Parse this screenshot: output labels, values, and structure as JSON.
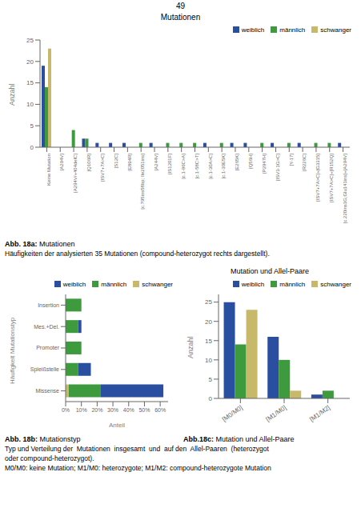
{
  "page_number": "49",
  "annotations": [
    "Typ und Verteilung der  Mutationen  insgesamt  und  auf den  Allel-Paaren  (heterozygot",
    "oder compound-heterozygot).",
    "M0/M0: keine Mutation; M1/M0: heterozygote; M1/M2: compound-heterozygote Mutation"
  ],
  "chart_data": [
    {
      "type": "bar",
      "title": "Mutationen",
      "ylabel": "Anzahl",
      "categories": [
        "Keine Mutation",
        "[A294V]",
        "[A294V/+404delC]",
        "[Q106R]",
        "[ISV7+7A>C]",
        "[S12C]",
        "[E894R]",
        "[c.795ins58bp; Ile2051ins]",
        "[A244V]",
        "[IS1201F]",
        "[c.1-96C>A]",
        "[c.1-58C>T]",
        "[c.1-30A>C]",
        "[c.1-30E5K]",
        "[E265K]",
        "[Q56H]",
        "[P2947H]",
        "[ISV3-1G>C]",
        "[Y-17]",
        "[R226C]",
        "[ISV7+7A>C]+[G3315]",
        "[ISV7+7A>C]+[R152Q]",
        "[c.220ins1G;Glu141ins]+[A294V]"
      ],
      "series": [
        {
          "name": "weiblich",
          "color": "#2b4fa0",
          "values": [
            19,
            0,
            0,
            2,
            1,
            1,
            1,
            0,
            1,
            0,
            0,
            0,
            1,
            0,
            1,
            1,
            0,
            1,
            0,
            1,
            0,
            0,
            1
          ]
        },
        {
          "name": "männlich",
          "color": "#3d9a3d",
          "values": [
            14,
            0,
            4,
            2,
            0,
            0,
            0,
            1,
            0,
            1,
            1,
            1,
            0,
            1,
            0,
            0,
            1,
            0,
            1,
            0,
            1,
            1,
            0
          ]
        },
        {
          "name": "schwanger",
          "color": "#c8b86a",
          "values": [
            23,
            0,
            0,
            0,
            0,
            0,
            0,
            0,
            0,
            0,
            0,
            0,
            0,
            0,
            0,
            0,
            0,
            0,
            0,
            0,
            0,
            0,
            0
          ]
        }
      ],
      "ylim": [
        0,
        25
      ],
      "yticks": [
        0,
        5,
        10,
        15,
        20,
        25
      ],
      "grid": false,
      "legend": "upper right",
      "annotations": [
        "Abb. 18a:",
        " Mutationen",
        "Häufigkeiten der analysierten 35 Mutationen (compound-heterozygot rechts dargestellt)."
      ]
    },
    {
      "type": "bar",
      "orientation": "horizontal",
      "stacked": true,
      "xlabel": "Anteil",
      "ylabel": "Häufigkeit Mutationstyp",
      "categories": [
        "Missense",
        "Spleißstelle",
        "Promoter",
        "Mes.+Del.",
        "Insertion"
      ],
      "series": [
        {
          "name": "weiblich",
          "color": "#2b4fa0",
          "values": [
            0.4,
            0.08,
            0.0,
            0.02,
            0.0
          ]
        },
        {
          "name": "männlich",
          "color": "#3d9a3d",
          "values": [
            0.2,
            0.08,
            0.1,
            0.08,
            0.1
          ]
        },
        {
          "name": "schwanger",
          "color": "#c8b86a",
          "values": [
            0.02,
            0.0,
            0.0,
            0.0,
            0.0
          ]
        }
      ],
      "xlim": [
        0,
        0.65
      ],
      "xticks": [
        {
          "value": 0.0,
          "label": "0%"
        },
        {
          "value": 0.1,
          "label": "10%"
        },
        {
          "value": 0.2,
          "label": "20%"
        },
        {
          "value": 0.3,
          "label": "30%"
        },
        {
          "value": 0.4,
          "label": "40%"
        },
        {
          "value": 0.5,
          "label": "50%"
        },
        {
          "value": 0.6,
          "label": "60%"
        }
      ],
      "grid": false,
      "legend": "upper right",
      "annotations": [
        "Abb. 18b:",
        " Mutationstyp"
      ]
    },
    {
      "type": "bar",
      "title": "Mutation und Allel-Paare",
      "ylabel": "Anzahl",
      "categories": [
        "[M0/M0]",
        "[M1/M0]",
        "[M1/M2]"
      ],
      "series": [
        {
          "name": "weiblich",
          "color": "#2b4fa0",
          "values": [
            25,
            16,
            1
          ]
        },
        {
          "name": "männlich",
          "color": "#3d9a3d",
          "values": [
            14,
            10,
            2
          ]
        },
        {
          "name": "schwanger",
          "color": "#c8b86a",
          "values": [
            23,
            2,
            0
          ]
        }
      ],
      "ylim": [
        0,
        27
      ],
      "yticks": [
        0,
        5,
        10,
        15,
        20,
        25
      ],
      "grid": false,
      "legend": "upper right",
      "annotations": [
        "Abb.18c:",
        " Mutation und Allel-Paare"
      ]
    }
  ]
}
